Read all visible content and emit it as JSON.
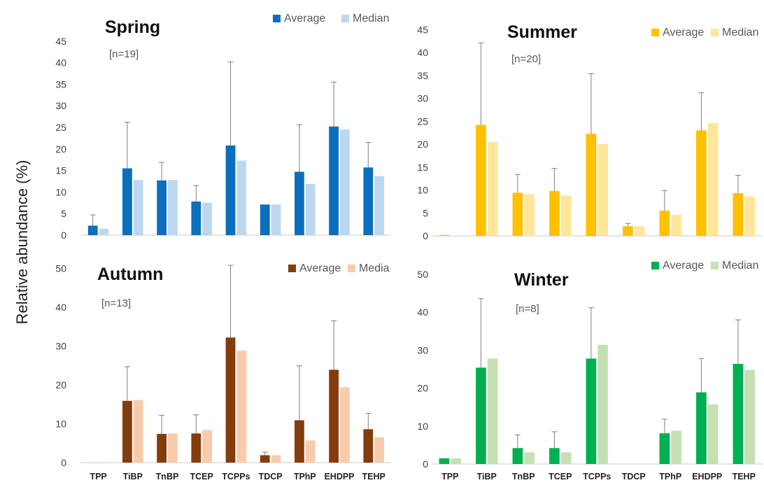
{
  "ylabel": "Relative abundance (%)",
  "categories": [
    "TPP",
    "TiBP",
    "TnBP",
    "TCEP",
    "TCPPs",
    "TDCP",
    "TPhP",
    "EHDPP",
    "TEHP"
  ],
  "chart_data": [
    {
      "type": "bar",
      "title": "Spring",
      "subtitle": "[n=19]",
      "categories": [
        "TPP",
        "TiBP",
        "TnBP",
        "TCEP",
        "TCPPs",
        "TDCP",
        "TPhP",
        "EHDPP",
        "TEHP"
      ],
      "series": [
        {
          "name": "Average",
          "color": "#0a6fbd",
          "values": [
            2.2,
            15.5,
            12.7,
            7.8,
            20.8,
            7.1,
            14.7,
            25.2,
            15.7
          ]
        },
        {
          "name": "Median",
          "color": "#bdd7ee",
          "values": [
            1.5,
            12.8,
            12.8,
            7.5,
            17.3,
            7.1,
            11.9,
            24.5,
            13.7
          ]
        }
      ],
      "error_upper": [
        4.7,
        26.2,
        16.9,
        11.5,
        40.2,
        null,
        25.6,
        35.5,
        21.5
      ],
      "ylim": [
        0,
        45
      ],
      "yticks": [
        0,
        5,
        10,
        15,
        20,
        25,
        30,
        35,
        40,
        45
      ],
      "legend_position": "top-right",
      "grid": false
    },
    {
      "type": "bar",
      "title": "Summer",
      "subtitle": "[n=20]",
      "categories": [
        "TPP",
        "TiBP",
        "TnBP",
        "TCEP",
        "TCPPs",
        "TDCP",
        "TPhP",
        "EHDPP",
        "TEHP"
      ],
      "series": [
        {
          "name": "Average",
          "color": "#ffc000",
          "values": [
            0.2,
            24.2,
            9.4,
            9.8,
            22.3,
            2.1,
            5.5,
            23.0,
            9.3
          ]
        },
        {
          "name": "Median",
          "color": "#ffe699",
          "values": [
            0.1,
            20.5,
            9.1,
            8.8,
            20.0,
            2.1,
            4.6,
            24.6,
            8.6
          ]
        }
      ],
      "error_upper": [
        null,
        42.1,
        13.4,
        14.7,
        35.4,
        2.7,
        9.9,
        31.2,
        13.2
      ],
      "ylim": [
        0,
        45
      ],
      "yticks": [
        0,
        5,
        10,
        15,
        20,
        25,
        30,
        35,
        40,
        45
      ],
      "legend_position": "top-right",
      "grid": false
    },
    {
      "type": "bar",
      "title": "Autumn",
      "subtitle": "[n=13]",
      "categories": [
        "TPP",
        "TiBP",
        "TnBP",
        "TCEP",
        "TCPPs",
        "TDCP",
        "TPhP",
        "EHDPP",
        "TEHP"
      ],
      "series": [
        {
          "name": "Average",
          "color": "#843c0c",
          "values": [
            0,
            15.9,
            7.4,
            7.5,
            32.2,
            1.9,
            10.9,
            23.9,
            8.6
          ]
        },
        {
          "name": "Media",
          "color": "#f8cbad",
          "values": [
            0,
            16.1,
            7.5,
            8.4,
            28.8,
            1.9,
            5.7,
            19.4,
            6.5
          ]
        }
      ],
      "error_upper": [
        null,
        24.7,
        12.2,
        12.3,
        50.8,
        2.7,
        24.9,
        36.5,
        12.7
      ],
      "ylim": [
        0,
        50
      ],
      "yticks": [
        0,
        10,
        20,
        30,
        40,
        50
      ],
      "legend_position": "top-right",
      "grid": false
    },
    {
      "type": "bar",
      "title": "Winter",
      "subtitle": "[n=8]",
      "categories": [
        "TPP",
        "TiBP",
        "TnBP",
        "TCEP",
        "TCPPs",
        "TDCP",
        "TPhP",
        "EHDPP",
        "TEHP"
      ],
      "series": [
        {
          "name": "Average",
          "color": "#00b050",
          "values": [
            1.5,
            25.4,
            4.2,
            4.2,
            27.8,
            0,
            8.1,
            18.9,
            26.4
          ]
        },
        {
          "name": "Median",
          "color": "#c6e0b4",
          "values": [
            1.5,
            27.8,
            3.1,
            3.1,
            31.4,
            0,
            8.8,
            15.7,
            24.8
          ]
        }
      ],
      "error_upper": [
        null,
        43.6,
        7.7,
        8.5,
        41.2,
        null,
        11.8,
        27.8,
        38.0
      ],
      "ylim": [
        0,
        50
      ],
      "yticks": [
        0,
        10,
        20,
        30,
        40,
        50
      ],
      "legend_position": "top-right",
      "grid": false
    }
  ]
}
